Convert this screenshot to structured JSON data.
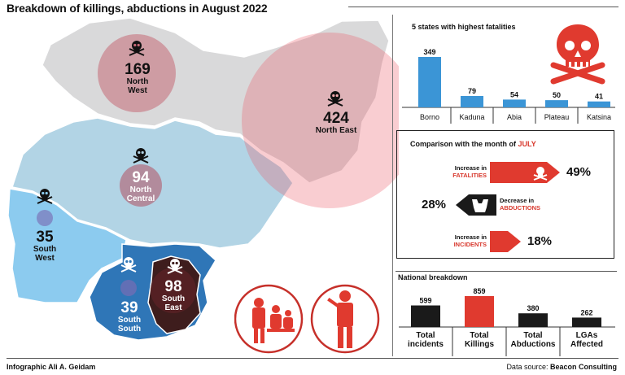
{
  "title": "Breakdown of killings, abductions in August 2022",
  "map": {
    "regions": [
      {
        "id": "north-west",
        "value": "169",
        "name_1": "North",
        "name_2": "West"
      },
      {
        "id": "north-east",
        "value": "424",
        "name_1": "North East",
        "name_2": ""
      },
      {
        "id": "north-central",
        "value": "94",
        "name_1": "North",
        "name_2": "Central"
      },
      {
        "id": "south-west",
        "value": "35",
        "name_1": "South",
        "name_2": "West"
      },
      {
        "id": "south-south",
        "value": "39",
        "name_1": "South",
        "name_2": "South"
      },
      {
        "id": "south-east",
        "value": "98",
        "name_1": "South",
        "name_2": "East"
      }
    ]
  },
  "states": {
    "title": "5 states with highest fatalities"
  },
  "comparison": {
    "title_prefix": "Comparison with the month of",
    "title_month": "JULY",
    "rows": [
      {
        "label_1": "Increase in",
        "label_2": "FATALITIES",
        "value": "49%"
      },
      {
        "label_1": "Decrease in",
        "label_2": "ABDUCTIONS",
        "value": "28%"
      },
      {
        "label_1": "Increase in",
        "label_2": "INCIDENTS",
        "value": "18%"
      }
    ]
  },
  "national": {
    "title": "National breakdown"
  },
  "footer": {
    "credit": "Infographic Ali A. Geidam",
    "source_prefix": "Data source:",
    "source_name": "Beacon Consulting"
  },
  "colors": {
    "accent_red": "#e03a2f",
    "bar_blue": "#3b95d6",
    "bar_black": "#1a1a1a"
  },
  "chart_data": [
    {
      "type": "bar",
      "title": "5 states with highest fatalities",
      "categories": [
        "Borno",
        "Kaduna",
        "Abia",
        "Plateau",
        "Katsina"
      ],
      "values": [
        349,
        79,
        54,
        50,
        41
      ],
      "ylim": [
        0,
        349
      ]
    },
    {
      "type": "bar",
      "title": "National breakdown",
      "categories": [
        [
          "Total",
          "incidents"
        ],
        [
          "Total",
          "Killings"
        ],
        [
          "Total",
          "Abductions"
        ],
        [
          "LGAs",
          "Affected"
        ]
      ],
      "values": [
        599,
        859,
        380,
        262
      ],
      "ylim": [
        0,
        859
      ]
    }
  ]
}
